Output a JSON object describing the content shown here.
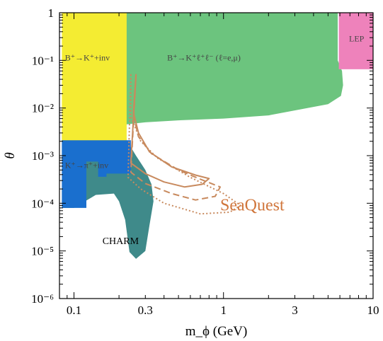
{
  "chart_data": {
    "type": "area",
    "title": "",
    "xlabel": "m_ϕ (GeV)",
    "ylabel": "θ",
    "x_scale": "log",
    "y_scale": "log",
    "xlim": [
      0.08,
      10
    ],
    "ylim": [
      1e-06,
      1
    ],
    "x_ticks": [
      {
        "value": 0.1,
        "label": "0.1"
      },
      {
        "value": 0.3,
        "label": "0.3"
      },
      {
        "value": 1,
        "label": "1"
      },
      {
        "value": 3,
        "label": "3"
      },
      {
        "value": 10,
        "label": "10"
      }
    ],
    "y_ticks": [
      {
        "value": 1,
        "label": "1"
      },
      {
        "value": 0.1,
        "label": "10⁻¹"
      },
      {
        "value": 0.01,
        "label": "10⁻²"
      },
      {
        "value": 0.001,
        "label": "10⁻³"
      },
      {
        "value": 0.0001,
        "label": "10⁻⁴"
      },
      {
        "value": 1e-05,
        "label": "10⁻⁵"
      },
      {
        "value": 1e-06,
        "label": "10⁻⁶"
      }
    ],
    "grid": false,
    "legend": "none",
    "regions": [
      {
        "name": "CHARM",
        "label": "CHARM",
        "color": "#3f8a8a",
        "label_at": [
          0.155,
          1.4e-05
        ],
        "points": [
          [
            0.083,
            0.0035
          ],
          [
            0.22,
            0.0035
          ],
          [
            0.225,
            0.0021
          ],
          [
            0.26,
            0.001
          ],
          [
            0.3,
            0.0005
          ],
          [
            0.33,
            0.00025
          ],
          [
            0.34,
            0.00011
          ],
          [
            0.32,
            3.5e-05
          ],
          [
            0.3,
            1e-05
          ],
          [
            0.26,
            6.8e-06
          ],
          [
            0.235,
            9.5e-06
          ],
          [
            0.22,
            4.5e-05
          ],
          [
            0.2,
            0.00011
          ],
          [
            0.185,
            0.00016
          ],
          [
            0.14,
            0.00015
          ],
          [
            0.1,
            8e-05
          ],
          [
            0.083,
            8e-05
          ]
        ]
      },
      {
        "name": "K-to-pi-inv",
        "label": "K⁺→π⁺+inv",
        "color": "#1a6fce",
        "label_at": [
          0.087,
          0.00055
        ],
        "points": [
          [
            0.083,
            0.0021
          ],
          [
            0.24,
            0.0021
          ],
          [
            0.24,
            0.00042
          ],
          [
            0.165,
            0.00042
          ],
          [
            0.165,
            0.00036
          ],
          [
            0.145,
            0.00036
          ],
          [
            0.145,
            0.00075
          ],
          [
            0.121,
            0.00075
          ],
          [
            0.121,
            8e-05
          ],
          [
            0.083,
            8e-05
          ]
        ]
      },
      {
        "name": "B-to-K-ll",
        "label": "B⁺→K⁺ℓ⁺ℓ⁻ (ℓ=e,μ)",
        "color": "#6cc47e",
        "label_at": [
          0.42,
          0.1
        ],
        "points": [
          [
            0.22,
            1
          ],
          [
            5.8,
            1
          ],
          [
            5.8,
            0.1
          ],
          [
            6.2,
            0.06
          ],
          [
            6.3,
            0.03
          ],
          [
            6.1,
            0.018
          ],
          [
            5.0,
            0.012
          ],
          [
            2.0,
            0.007
          ],
          [
            1.0,
            0.006
          ],
          [
            0.5,
            0.0055
          ],
          [
            0.3,
            0.005
          ],
          [
            0.22,
            0.0045
          ]
        ]
      },
      {
        "name": "B-to-K-inv",
        "label": "B⁺→K⁺+inv",
        "color": "#f4ec32",
        "label_at": [
          0.087,
          0.1
        ],
        "points": [
          [
            0.083,
            1
          ],
          [
            0.225,
            1
          ],
          [
            0.225,
            0.0021
          ],
          [
            0.083,
            0.0021
          ]
        ]
      },
      {
        "name": "LEP",
        "label": "LEP",
        "color": "#ee82bb",
        "label_at": [
          6.9,
          0.25
        ],
        "points": [
          [
            5.9,
            1
          ],
          [
            10,
            1
          ],
          [
            10,
            0.065
          ],
          [
            5.9,
            0.065
          ]
        ]
      }
    ],
    "series": [
      {
        "name": "SeaQuest-solid",
        "style": "solid",
        "color": "#c88a5e",
        "points": [
          [
            0.26,
            0.05
          ],
          [
            0.25,
            0.008
          ],
          [
            0.27,
            0.003
          ],
          [
            0.32,
            0.0012
          ],
          [
            0.45,
            0.00058
          ],
          [
            0.65,
            0.00039
          ],
          [
            0.8,
            0.00033
          ],
          [
            0.72,
            0.00025
          ],
          [
            0.55,
            0.00022
          ],
          [
            0.4,
            0.00028
          ],
          [
            0.3,
            0.00042
          ],
          [
            0.24,
            0.0007
          ]
        ]
      },
      {
        "name": "SeaQuest-dashed",
        "style": "dashed",
        "color": "#c88a5e",
        "points": [
          [
            0.26,
            0.05
          ],
          [
            0.25,
            0.007
          ],
          [
            0.27,
            0.0025
          ],
          [
            0.33,
            0.0011
          ],
          [
            0.5,
            0.0005
          ],
          [
            0.7,
            0.00032
          ],
          [
            0.95,
            0.00022
          ],
          [
            0.88,
            0.00014
          ],
          [
            0.65,
            0.000117
          ],
          [
            0.45,
            0.00016
          ],
          [
            0.3,
            0.00026
          ],
          [
            0.24,
            0.00045
          ]
        ]
      },
      {
        "name": "SeaQuest-dotted",
        "style": "dotted",
        "color": "#c88a5e",
        "points": [
          [
            0.24,
            0.05
          ],
          [
            0.24,
            0.0065
          ],
          [
            0.28,
            0.002
          ],
          [
            0.36,
            0.0009
          ],
          [
            0.6,
            0.00035
          ],
          [
            1.0,
            0.00016
          ],
          [
            1.3,
            9e-05
          ],
          [
            1.1,
            6.5e-05
          ],
          [
            0.7,
            6e-05
          ],
          [
            0.4,
            0.0001
          ],
          [
            0.28,
            0.0002
          ],
          [
            0.23,
            0.00035
          ]
        ]
      }
    ],
    "annotations": [
      {
        "text": "SeaQuest",
        "color": "#d0763c",
        "at": [
          0.95,
          7.12e-05
        ]
      }
    ]
  }
}
